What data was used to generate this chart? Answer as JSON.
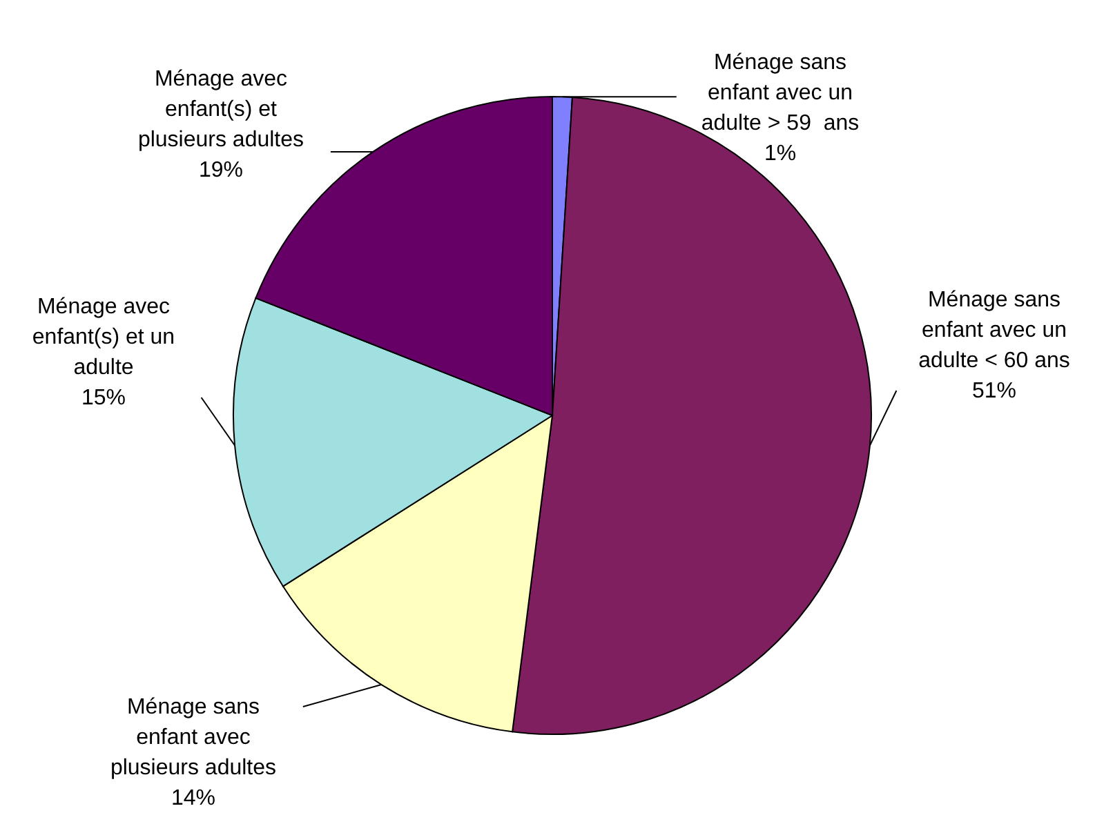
{
  "chart_data": {
    "type": "pie",
    "categories": [
      "Ménage sans enfant avec un adulte > 59  ans",
      "Ménage sans enfant avec un adulte < 60 ans",
      "Ménage sans enfant avec plusieurs adultes",
      "Ménage avec enfant(s) et un adulte",
      "Ménage avec enfant(s) et plusieurs adultes"
    ],
    "values": [
      1,
      51,
      14,
      15,
      19
    ],
    "value_labels": [
      "1%",
      "51%",
      "14%",
      "15%",
      "19%"
    ],
    "colors": [
      "#8080ff",
      "#7f1f5f",
      "#ffffc0",
      "#a0e0e0",
      "#660066"
    ]
  }
}
